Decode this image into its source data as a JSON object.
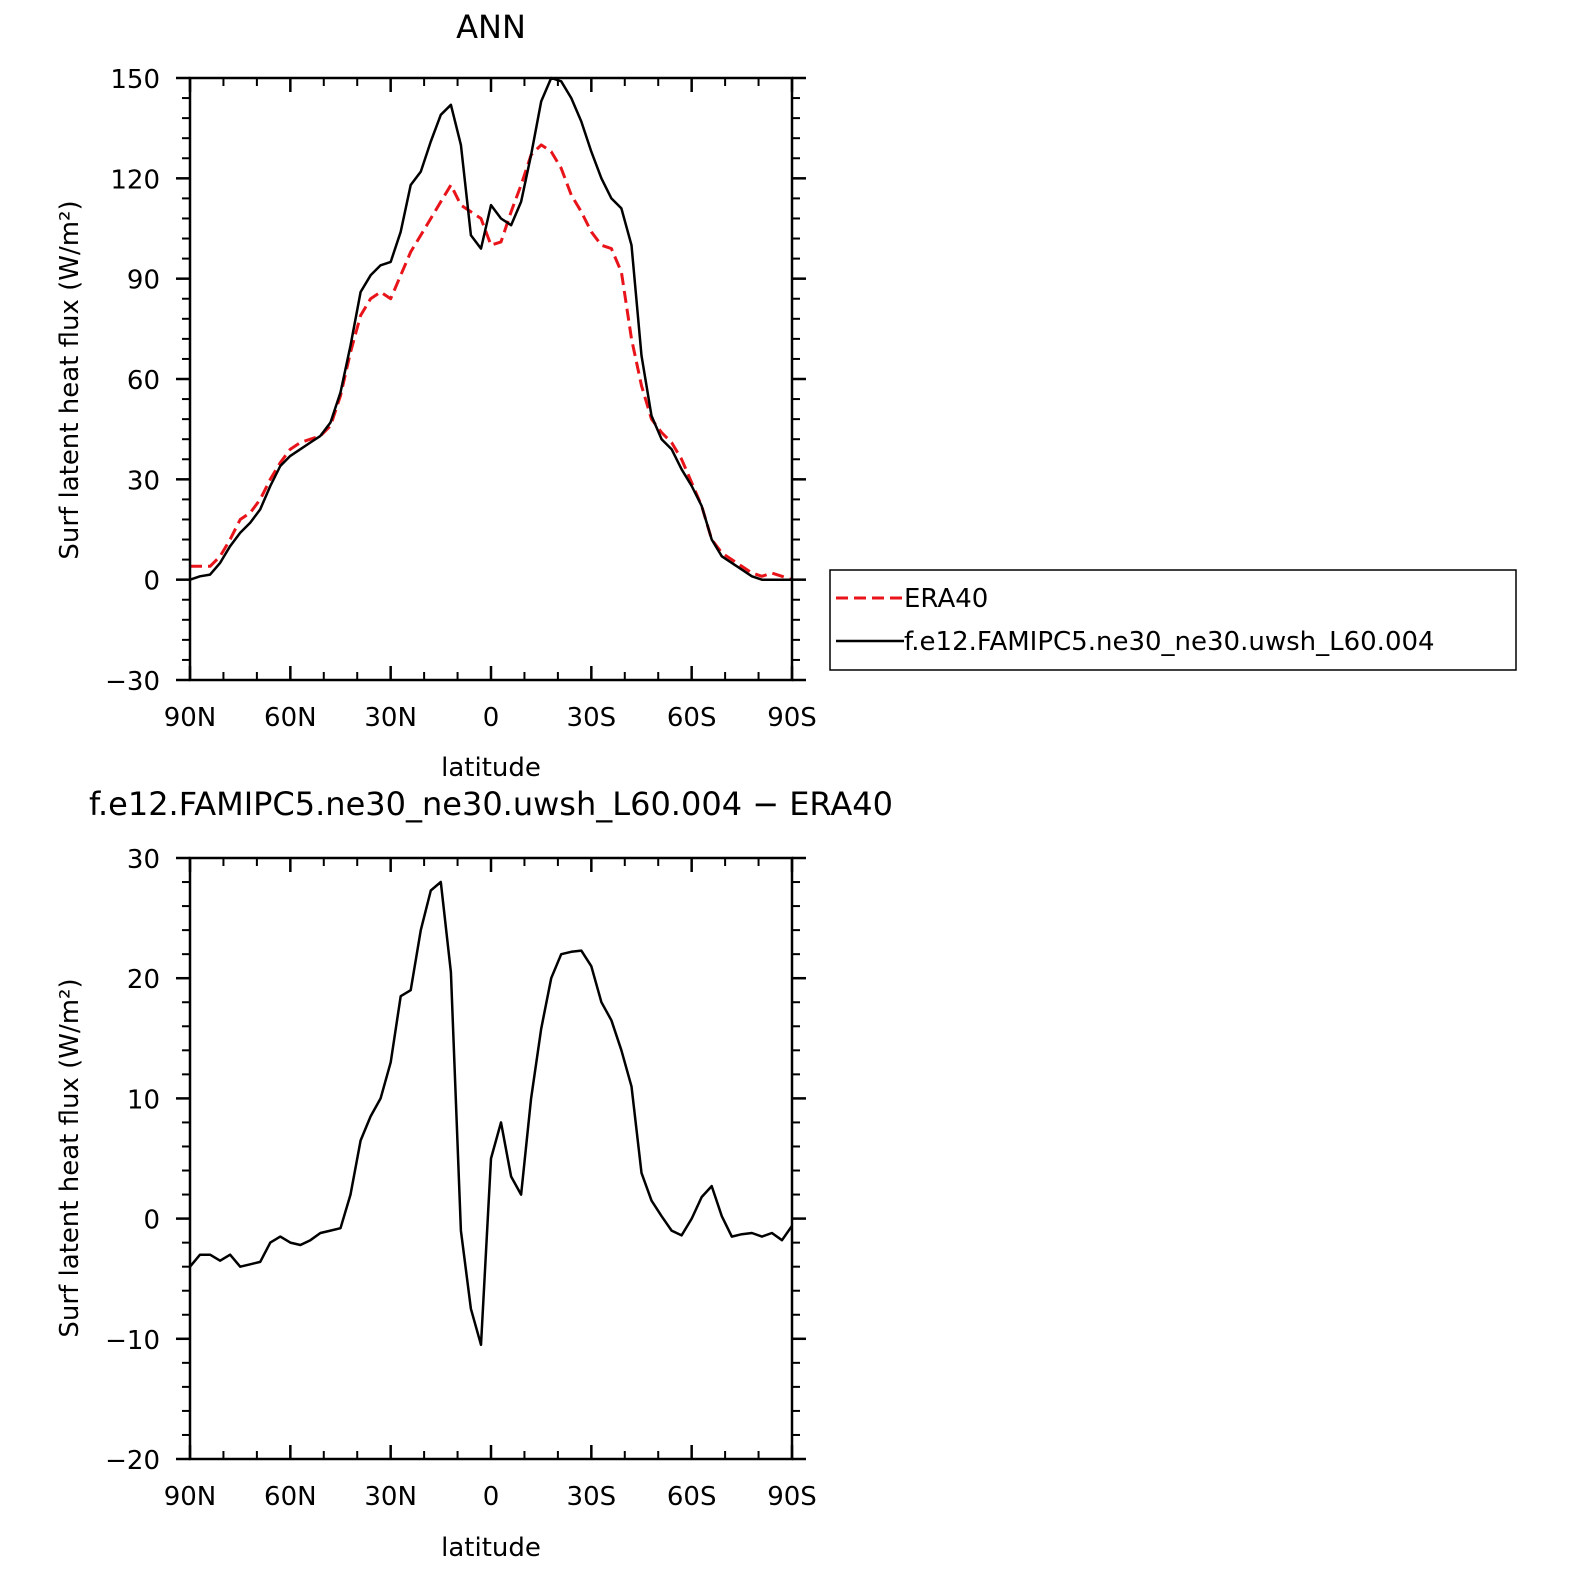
{
  "chart_data": [
    {
      "type": "line",
      "title": "ANN",
      "xlabel": "latitude",
      "ylabel": "Surf latent heat flux (W/m²)",
      "xlim": [
        90,
        -90
      ],
      "ylim": [
        -30,
        150
      ],
      "xticks": [
        90,
        60,
        30,
        0,
        -30,
        -60,
        -90
      ],
      "xtick_labels": [
        "90N",
        "60N",
        "30N",
        "0",
        "30S",
        "60S",
        "90S"
      ],
      "yticks": [
        -30,
        0,
        30,
        60,
        90,
        120,
        150
      ],
      "ytick_labels": [
        "−30",
        "0",
        "30",
        "60",
        "90",
        "120",
        "150"
      ],
      "grid": false,
      "legend_position": "right",
      "series": [
        {
          "name": "ERA40",
          "color": "#e8141a",
          "dash": "dashed",
          "x": [
            90,
            87,
            84,
            81,
            78,
            75,
            72,
            69,
            66,
            63,
            60,
            57,
            54,
            51,
            48,
            45,
            42,
            39,
            36,
            33,
            30,
            27,
            24,
            21,
            18,
            15,
            12,
            9,
            6,
            3,
            0,
            -3,
            -6,
            -9,
            -12,
            -15,
            -18,
            -21,
            -24,
            -27,
            -30,
            -33,
            -36,
            -39,
            -42,
            -45,
            -48,
            -51,
            -54,
            -57,
            -60,
            -63,
            -66,
            -69,
            -72,
            -75,
            -78,
            -81,
            -84,
            -87,
            -90
          ],
          "y": [
            4,
            4,
            4,
            7,
            12,
            18,
            20,
            24,
            30,
            35,
            39,
            41,
            42,
            43,
            46,
            55,
            68,
            79,
            84,
            86,
            84,
            91,
            98,
            103,
            108,
            113,
            118,
            112,
            110,
            108,
            100,
            101,
            110,
            118,
            127,
            130,
            128,
            123,
            115,
            110,
            104,
            100,
            99,
            92,
            72,
            58,
            48,
            44,
            41,
            36,
            29,
            22,
            12,
            8,
            6,
            4,
            2,
            1,
            2,
            1,
            0
          ]
        },
        {
          "name": "f.e12.FAMIPC5.ne30_ne30.uwsh_L60.004",
          "color": "#000000",
          "dash": "solid",
          "x": [
            90,
            87,
            84,
            81,
            78,
            75,
            72,
            69,
            66,
            63,
            60,
            57,
            54,
            51,
            48,
            45,
            42,
            39,
            36,
            33,
            30,
            27,
            24,
            21,
            18,
            15,
            12,
            9,
            6,
            3,
            0,
            -3,
            -6,
            -9,
            -12,
            -15,
            -18,
            -21,
            -24,
            -27,
            -30,
            -33,
            -36,
            -39,
            -42,
            -45,
            -48,
            -51,
            -54,
            -57,
            -60,
            -63,
            -66,
            -69,
            -72,
            -75,
            -78,
            -81,
            -84,
            -87,
            -90
          ],
          "y": [
            0,
            1,
            1.5,
            5,
            10,
            14,
            17,
            21,
            28,
            34,
            37,
            39,
            41,
            43,
            47,
            56,
            70,
            86,
            91,
            94,
            95,
            104,
            118,
            122,
            131,
            139,
            142,
            130,
            103,
            99,
            112,
            108,
            106,
            113,
            127,
            143,
            150,
            149,
            144,
            137,
            128,
            120,
            114,
            111,
            100,
            67,
            49,
            42,
            39,
            33,
            28,
            22,
            12,
            7,
            5,
            3,
            1,
            0,
            0,
            0,
            0
          ]
        }
      ]
    },
    {
      "type": "line",
      "title": "f.e12.FAMIPC5.ne30_ne30.uwsh_L60.004 − ERA40",
      "xlabel": "latitude",
      "ylabel": "Surf latent heat flux (W/m²)",
      "xlim": [
        90,
        -90
      ],
      "ylim": [
        -20,
        30
      ],
      "xticks": [
        90,
        60,
        30,
        0,
        -30,
        -60,
        -90
      ],
      "xtick_labels": [
        "90N",
        "60N",
        "30N",
        "0",
        "30S",
        "60S",
        "90S"
      ],
      "yticks": [
        -20,
        -10,
        0,
        10,
        20,
        30
      ],
      "ytick_labels": [
        "−20",
        "−10",
        "0",
        "10",
        "20",
        "30"
      ],
      "grid": false,
      "series": [
        {
          "color": "#000000",
          "dash": "solid",
          "x": [
            90,
            87,
            84,
            81,
            78,
            75,
            72,
            69,
            66,
            63,
            60,
            57,
            54,
            51,
            48,
            45,
            42,
            39,
            36,
            33,
            30,
            27,
            24,
            21,
            18,
            15,
            12,
            9,
            6,
            3,
            0,
            -3,
            -6,
            -9,
            -12,
            -15,
            -18,
            -21,
            -24,
            -27,
            -30,
            -33,
            -36,
            -39,
            -42,
            -45,
            -48,
            -51,
            -54,
            -57,
            -60,
            -63,
            -66,
            -69,
            -72,
            -75,
            -78,
            -81,
            -84,
            -87,
            -90
          ],
          "y": [
            -4,
            -3,
            -3,
            -3.5,
            -3,
            -4,
            -3.8,
            -3.6,
            -2,
            -1.5,
            -2,
            -2.2,
            -1.8,
            -1.2,
            -1,
            -0.8,
            2,
            6.5,
            8.5,
            10,
            13,
            18.5,
            19,
            24,
            27.3,
            28,
            20.5,
            -1,
            -7.5,
            -10.5,
            5,
            8,
            3.5,
            2,
            10,
            15.8,
            20,
            22,
            22.2,
            22.3,
            21,
            18,
            16.5,
            14,
            11,
            3.8,
            1.5,
            0.2,
            -1,
            -1.4,
            0,
            1.8,
            2.7,
            0.2,
            -1.5,
            -1.3,
            -1.2,
            -1.5,
            -1.2,
            -1.8,
            -0.6
          ]
        }
      ]
    }
  ]
}
